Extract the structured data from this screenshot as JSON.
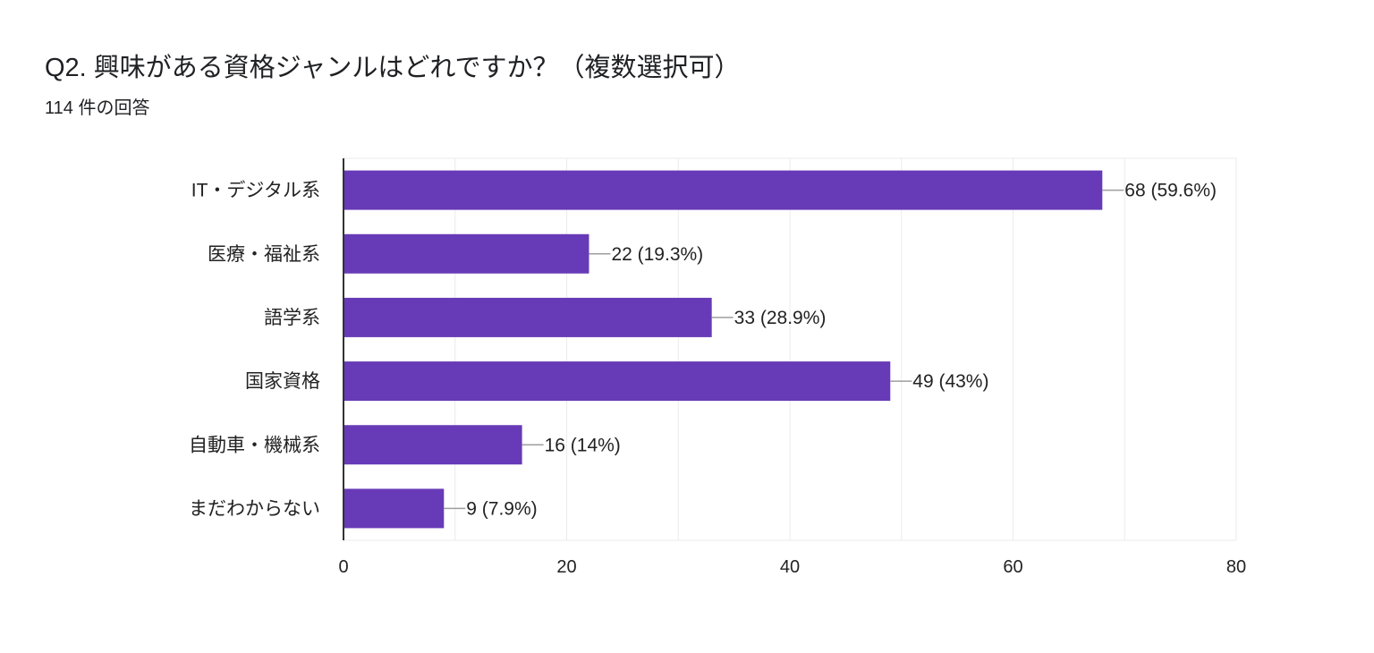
{
  "header": {
    "title": "Q2. 興味がある資格ジャンルはどれですか？（複数選択可）",
    "response_count": "114 件の回答"
  },
  "chart_data": {
    "type": "bar",
    "orientation": "horizontal",
    "categories": [
      "IT・デジタル系",
      "医療・福祉系",
      "語学系",
      "国家資格",
      "自動車・機械系",
      "まだわからない"
    ],
    "values": [
      68,
      22,
      33,
      49,
      16,
      9
    ],
    "data_labels": [
      "68 (59.6%)",
      "22 (19.3%)",
      "33 (28.9%)",
      "49 (43%)",
      "16 (14%)",
      "9 (7.9%)"
    ],
    "xlim": [
      0,
      80
    ],
    "x_ticks": [
      0,
      20,
      40,
      60,
      80
    ],
    "minor_grid_step": 10,
    "grid": true,
    "legend": "none",
    "colors": {
      "bar": "#673AB7",
      "grid": "#EBEBEB",
      "axis": "#333333",
      "leader": "#9E9E9E"
    }
  }
}
